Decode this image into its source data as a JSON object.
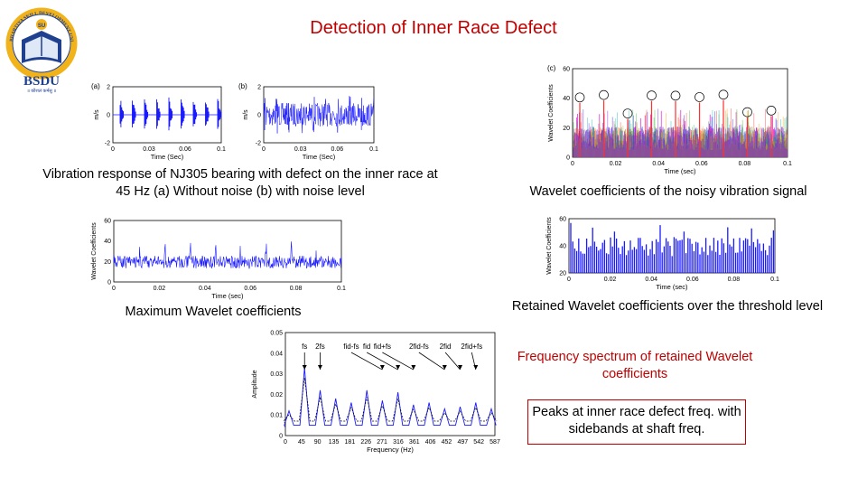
{
  "title": "Detection of Inner Race Defect",
  "logo": {
    "name": "BSDU",
    "arc_text": "BHARTIYA SKILL DEVELOPMENT UNIVERSITY",
    "motto": "॥ कौशलं कर्मसु ॥",
    "emblem": "SU",
    "color_primary": "#1f3f8f",
    "color_accent": "#f2b31a"
  },
  "captions": {
    "vibration": "Vibration response of NJ305 bearing with defect on the inner race  at 45 Hz (a) Without noise (b) with noise level",
    "wavelet_noisy": "Wavelet coefficients of the noisy vibration signal",
    "max_wavelet": "Maximum Wavelet coefficients",
    "retained": "Retained Wavelet coefficients over the threshold level",
    "spectrum": "Frequency spectrum of retained Wavelet coefficients",
    "peaks": "Peaks at inner race defect freq. with sidebands at shaft freq."
  },
  "plot_a": {
    "panel": "(a)",
    "ylabel": "m/s",
    "xlabel": "Time (Sec)",
    "yticks": [
      "2",
      "0",
      "-2"
    ],
    "xticks": [
      "0",
      "0.03",
      "0.06",
      "0.1"
    ]
  },
  "plot_b": {
    "panel": "(b)",
    "ylabel": "m/s",
    "xlabel": "Time (Sec)",
    "yticks": [
      "2",
      "0",
      "-2"
    ],
    "xticks": [
      "0",
      "0.03",
      "0.06",
      "0.1"
    ]
  },
  "plot_c": {
    "panel": "(c)",
    "ylabel": "Wavelet Coefficients",
    "xlabel": "Time (sec)",
    "yticks": [
      "60",
      "40",
      "20",
      "0"
    ],
    "xticks": [
      "0",
      "0.02",
      "0.04",
      "0.06",
      "0.08",
      "0.1"
    ]
  },
  "plot_d": {
    "ylabel": "Wavelet Coefficients",
    "xlabel": "Time (sec)",
    "yticks": [
      "60",
      "40",
      "20",
      "0"
    ],
    "xticks": [
      "0",
      "0.02",
      "0.04",
      "0.06",
      "0.08",
      "0.1"
    ]
  },
  "plot_e": {
    "ylabel": "Wavelet Coefficients",
    "xlabel": "Time (sec)",
    "yticks": [
      "60",
      "40",
      "20"
    ],
    "xticks": [
      "0",
      "0.02",
      "0.04",
      "0.06",
      "0.08",
      "0.1"
    ]
  },
  "spectrum_plot": {
    "ylabel": "Amplitude",
    "xlabel": "Frequency (Hz)",
    "yticks": [
      "0.05",
      "0.04",
      "0.03",
      "0.02",
      "0.01",
      "0"
    ],
    "xticks": [
      "0",
      "45",
      "90",
      "135",
      "181",
      "226",
      "271",
      "316",
      "361",
      "406",
      "452",
      "497",
      "542",
      "587"
    ],
    "peak_labels": [
      "fs",
      "2fs",
      "fid-fs",
      "fid",
      "fid+fs",
      "2fid-fs",
      "2fid",
      "2fid+fs"
    ]
  },
  "colors": {
    "title": "#c00000",
    "signal": "#1a1aff",
    "box_border": "#c00000"
  }
}
